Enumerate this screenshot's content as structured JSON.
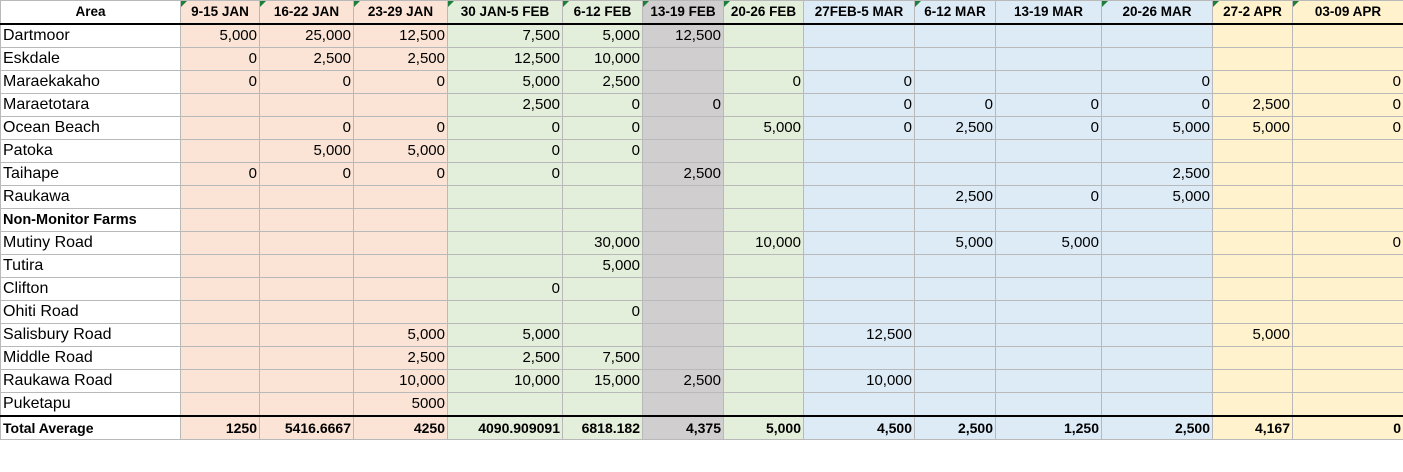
{
  "colors": {
    "salmon": "#fbe4d6",
    "green": "#e3efda",
    "grey": "#d0cece",
    "blue": "#ddebf7",
    "yellow": "#fff2cc",
    "comment_marker": "#1e7f3a"
  },
  "header": {
    "area": "Area",
    "cols": [
      "9-15 JAN",
      "16-22 JAN",
      "23-29 JAN",
      "30 JAN-5 FEB",
      "6-12 FEB",
      "13-19 FEB",
      "20-26 FEB",
      "27FEB-5 MAR",
      "6-12 MAR",
      "13-19 MAR",
      "20-26 MAR",
      "27-2 APR",
      "03-09 APR"
    ]
  },
  "rows": [
    {
      "area": "Dartmoor",
      "values": [
        "5,000",
        "25,000",
        "12,500",
        "7,500",
        "5,000",
        "12,500",
        "",
        "",
        "",
        "",
        "",
        "",
        ""
      ]
    },
    {
      "area": "Eskdale",
      "values": [
        "0",
        "2,500",
        "2,500",
        "12,500",
        "10,000",
        "",
        "",
        "",
        "",
        "",
        "",
        "",
        ""
      ]
    },
    {
      "area": "Maraekakaho",
      "values": [
        "0",
        "0",
        "0",
        "5,000",
        "2,500",
        "",
        "0",
        "0",
        "",
        "",
        "0",
        "",
        "0"
      ]
    },
    {
      "area": "Maraetotara",
      "values": [
        "",
        "",
        "",
        "2,500",
        "0",
        "0",
        "",
        "0",
        "0",
        "0",
        "0",
        "2,500",
        "0"
      ]
    },
    {
      "area": "Ocean Beach",
      "values": [
        "",
        "0",
        "0",
        "0",
        "0",
        "",
        "5,000",
        "0",
        "2,500",
        "0",
        "5,000",
        "5,000",
        "0"
      ]
    },
    {
      "area": "Patoka",
      "values": [
        "",
        "5,000",
        "5,000",
        "0",
        "0",
        "",
        "",
        "",
        "",
        "",
        "",
        "",
        ""
      ]
    },
    {
      "area": "Taihape",
      "values": [
        "0",
        "0",
        "0",
        "0",
        "",
        "2,500",
        "",
        "",
        "",
        "",
        "2,500",
        "",
        ""
      ]
    },
    {
      "area": "Raukawa",
      "values": [
        "",
        "",
        "",
        "",
        "",
        "",
        "",
        "",
        "2,500",
        "0",
        "5,000",
        "",
        ""
      ]
    },
    {
      "area": "Non-Monitor Farms",
      "section": true,
      "values": [
        "",
        "",
        "",
        "",
        "",
        "",
        "",
        "",
        "",
        "",
        "",
        "",
        ""
      ]
    },
    {
      "area": "Mutiny Road",
      "values": [
        "",
        "",
        "",
        "",
        "30,000",
        "",
        "10,000",
        "",
        "5,000",
        "5,000",
        "",
        "",
        "0"
      ]
    },
    {
      "area": "Tutira",
      "values": [
        "",
        "",
        "",
        "",
        "5,000",
        "",
        "",
        "",
        "",
        "",
        "",
        "",
        ""
      ]
    },
    {
      "area": "Clifton",
      "values": [
        "",
        "",
        "",
        "0",
        "",
        "",
        "",
        "",
        "",
        "",
        "",
        "",
        ""
      ]
    },
    {
      "area": "Ohiti Road",
      "values": [
        "",
        "",
        "",
        "",
        "0",
        "",
        "",
        "",
        "",
        "",
        "",
        "",
        ""
      ]
    },
    {
      "area": "Salisbury Road",
      "values": [
        "",
        "",
        "5,000",
        "5,000",
        "",
        "",
        "",
        "12,500",
        "",
        "",
        "",
        "5,000",
        ""
      ]
    },
    {
      "area": "Middle Road",
      "values": [
        "",
        "",
        "2,500",
        "2,500",
        "7,500",
        "",
        "",
        "",
        "",
        "",
        "",
        "",
        ""
      ]
    },
    {
      "area": "Raukawa Road",
      "values": [
        "",
        "",
        "10,000",
        "10,000",
        "15,000",
        "2,500",
        "",
        "10,000",
        "",
        "",
        "",
        "",
        ""
      ]
    },
    {
      "area": "Puketapu",
      "values": [
        "",
        "",
        "5000",
        "",
        "",
        "",
        "",
        "",
        "",
        "",
        "",
        "",
        ""
      ]
    }
  ],
  "total": {
    "area": "Total Average",
    "values": [
      "1250",
      "5416.6667",
      "4250",
      "4090.909091",
      "6818.182",
      "4,375",
      "5,000",
      "4,500",
      "2,500",
      "1,250",
      "2,500",
      "4,167",
      "0"
    ]
  }
}
